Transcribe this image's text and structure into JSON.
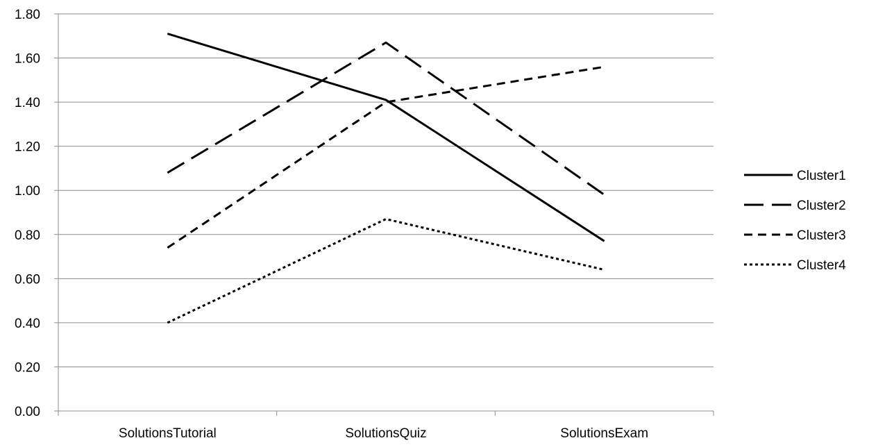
{
  "chart_data": {
    "type": "line",
    "title": "",
    "xlabel": "",
    "ylabel": "",
    "categories": [
      "SolutionsTutorial",
      "SolutionsQuiz",
      "SolutionsExam"
    ],
    "ylim": [
      0,
      1.8
    ],
    "ytick_step": 0.2,
    "y_tick_labels": [
      "0.00",
      "0.20",
      "0.40",
      "0.60",
      "0.80",
      "1.00",
      "1.20",
      "1.40",
      "1.60",
      "1.80"
    ],
    "grid": "horizontal",
    "legend_position": "right",
    "series": [
      {
        "name": "Cluster1",
        "values": [
          1.71,
          1.41,
          0.77
        ],
        "color": "#000000",
        "dash": "solid"
      },
      {
        "name": "Cluster2",
        "values": [
          1.08,
          1.67,
          0.98
        ],
        "color": "#000000",
        "dash": "long-dash"
      },
      {
        "name": "Cluster3",
        "values": [
          0.74,
          1.4,
          1.56
        ],
        "color": "#000000",
        "dash": "dash"
      },
      {
        "name": "Cluster4",
        "values": [
          0.4,
          0.87,
          0.64
        ],
        "color": "#000000",
        "dash": "dot"
      }
    ]
  }
}
